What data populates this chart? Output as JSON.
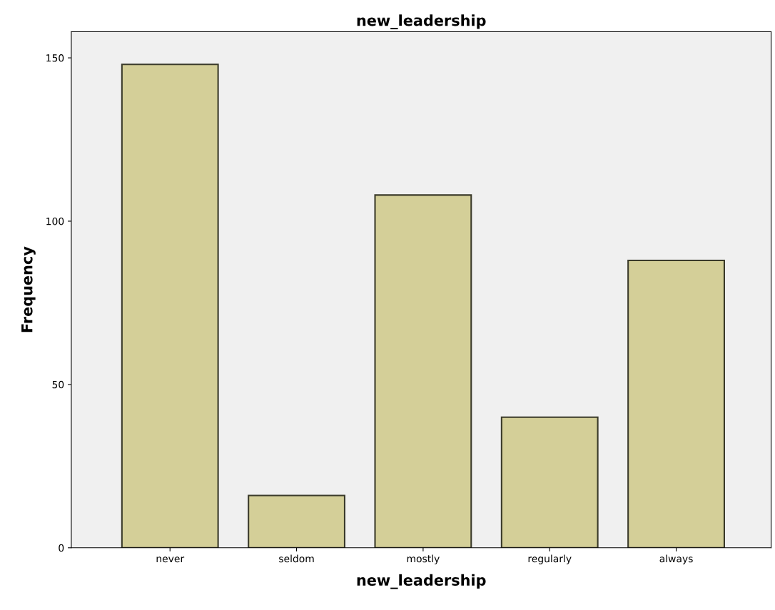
{
  "chart_data": {
    "type": "bar",
    "title": "new_leadership",
    "xlabel": "new_leadership",
    "ylabel": "Frequency",
    "categories": [
      "never",
      "seldom",
      "mostly",
      "regularly",
      "always"
    ],
    "values": [
      148,
      16,
      108,
      40,
      88
    ],
    "color": "#d4cf98",
    "ylim": [
      0,
      158
    ],
    "yticks": [
      0,
      50,
      100,
      150
    ],
    "grid": false,
    "legend": false
  }
}
